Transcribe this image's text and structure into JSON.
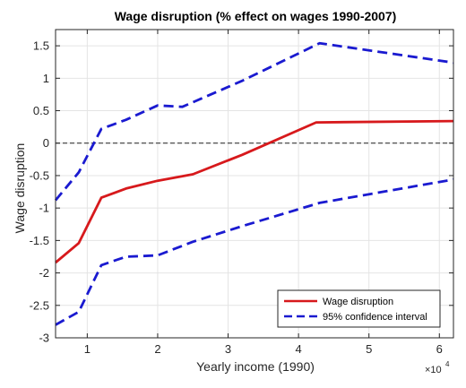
{
  "chart_data": {
    "type": "line",
    "title": "Wage disruption (% effect on wages 1990-2007)",
    "xlabel": "Yearly income (1990)",
    "ylabel": "Wage disruption",
    "x_multiplier": {
      "base": "×10",
      "exponent": "4"
    },
    "xlim": [
      0.55,
      6.2
    ],
    "ylim": [
      -3,
      1.75
    ],
    "x_ticks": [
      1,
      2,
      3,
      4,
      5,
      6
    ],
    "y_ticks": [
      -3,
      -2.5,
      -2,
      -1.5,
      -1,
      -0.5,
      0,
      0.5,
      1,
      1.5
    ],
    "grid": true,
    "legend_position": "bottom-right",
    "reference_line": {
      "y": 0,
      "style": "dashed",
      "color": "#222222"
    },
    "series": [
      {
        "name": "Wage disruption",
        "color": "#d7191c",
        "style": "solid",
        "x": [
          0.55,
          0.88,
          1.2,
          1.55,
          2.0,
          2.5,
          3.2,
          4.25,
          6.2
        ],
        "y": [
          -1.84,
          -1.54,
          -0.84,
          -0.7,
          -0.58,
          -0.48,
          -0.18,
          0.32,
          0.34
        ]
      },
      {
        "name": "95% confidence interval",
        "color": "#1a1ad0",
        "style": "dashed",
        "x": [
          0.55,
          0.88,
          1.2,
          1.55,
          2.0,
          2.35,
          3.2,
          4.3,
          6.2
        ],
        "y": [
          -0.88,
          -0.45,
          0.22,
          0.36,
          0.58,
          0.56,
          0.96,
          1.54,
          1.24
        ]
      },
      {
        "name": "",
        "color": "#1a1ad0",
        "style": "dashed",
        "x": [
          0.55,
          0.88,
          1.2,
          1.55,
          2.0,
          2.5,
          3.2,
          4.3,
          6.2
        ],
        "y": [
          -2.8,
          -2.6,
          -1.88,
          -1.75,
          -1.73,
          -1.52,
          -1.28,
          -0.92,
          -0.56
        ]
      }
    ]
  }
}
